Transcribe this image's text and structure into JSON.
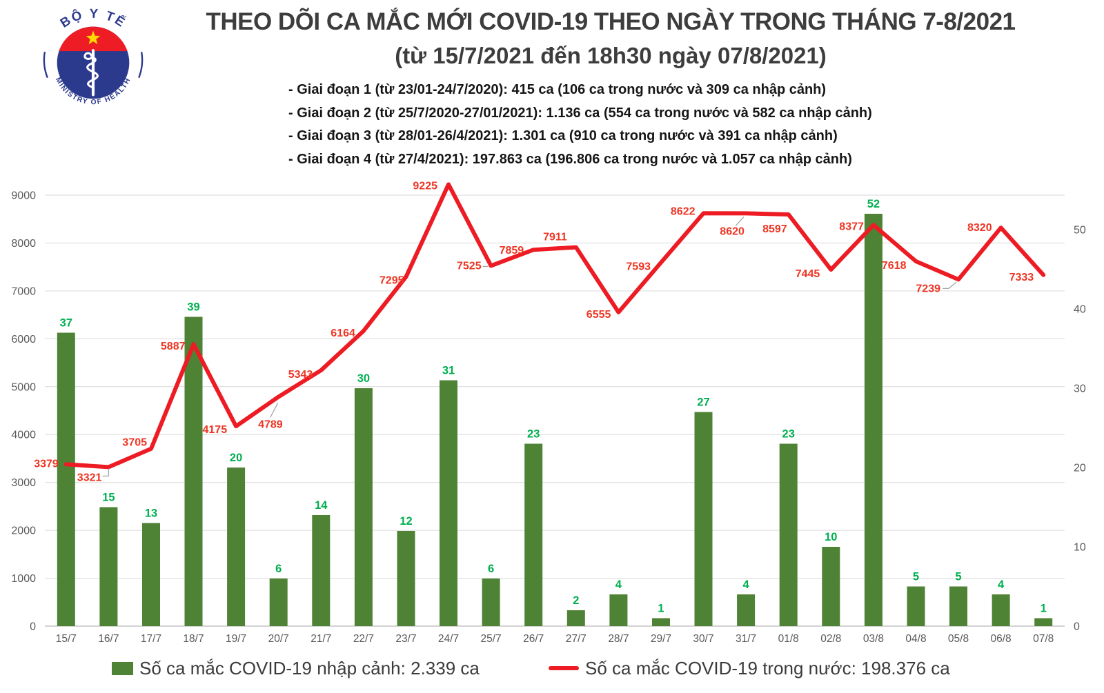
{
  "logo": {
    "top_text": "BỘ Y TẾ",
    "bottom_text": "MINISTRY OF HEALTH",
    "colors": {
      "blue": "#2c3a8e",
      "red": "#ee1c25",
      "star_yellow": "#ffd900"
    }
  },
  "header": {
    "title": "THEO DÕI CA MẮC MỚI COVID-19 THEO NGÀY TRONG THÁNG 7-8/2021",
    "subtitle": "(từ 15/7/2021 đến 18h30 ngày 07/8/2021)",
    "bullets": [
      "- Giai đoạn 1 (từ 23/01-24/7/2020): 415 ca (106 ca trong nước và 309 ca nhập cảnh)",
      "- Giai đoạn 2 (từ 25/7/2020-27/01/2021): 1.136 ca (554 ca trong nước và 582 ca nhập cảnh)",
      "- Giai đoạn 3 (từ 28/01-26/4/2021): 1.301 ca (910 ca trong nước và 391 ca nhập cảnh)",
      "- Giai đoạn 4 (từ 27/4/2021): 197.863 ca (196.806 ca trong nước và 1.057 ca nhập cảnh)"
    ]
  },
  "chart_data": {
    "type": "bar+line",
    "title": "THEO DÕI CA MẮC MỚI COVID-19 THEO NGÀY TRONG THÁNG 7-8/2021",
    "grid": true,
    "legend_position": "bottom",
    "categories": [
      "15/7",
      "16/7",
      "17/7",
      "18/7",
      "19/7",
      "20/7",
      "21/7",
      "22/7",
      "23/7",
      "24/7",
      "25/7",
      "26/7",
      "27/7",
      "28/7",
      "29/7",
      "30/7",
      "31/7",
      "01/8",
      "02/8",
      "03/8",
      "04/8",
      "05/8",
      "06/8",
      "07/8"
    ],
    "series": [
      {
        "name": "Số ca mắc COVID-19 nhập cảnh",
        "type": "bar",
        "axis": "right",
        "color": "#4e8234",
        "label_color": "#00af50",
        "values": [
          37,
          15,
          13,
          39,
          20,
          6,
          14,
          30,
          12,
          31,
          6,
          23,
          2,
          4,
          1,
          27,
          4,
          23,
          10,
          52,
          5,
          5,
          4,
          1
        ]
      },
      {
        "name": "Số ca mắc COVID-19 trong nước",
        "type": "line",
        "axis": "left",
        "color": "#ed1c24",
        "label_color": "#ee3524",
        "values": [
          3379,
          3321,
          3705,
          5887,
          4175,
          4789,
          5343,
          6164,
          7295,
          9225,
          7525,
          7859,
          7911,
          6555,
          7593,
          8622,
          8620,
          8597,
          7445,
          8377,
          7618,
          7239,
          8320,
          7333
        ]
      }
    ],
    "left_axis": {
      "min": 0,
      "max": 9000,
      "step": 1000,
      "ticks": [
        0,
        1000,
        2000,
        3000,
        4000,
        5000,
        6000,
        7000,
        8000,
        9000
      ]
    },
    "right_axis": {
      "min": 0,
      "ticks": [
        0,
        10,
        20,
        30,
        40,
        50
      ]
    },
    "colors": {
      "grid": "#d9d9d9",
      "axis_text": "#595959",
      "leader": "#a6a6a6"
    }
  },
  "legend": [
    {
      "label": "Số ca mắc COVID-19 nhập cảnh: 2.339 ca",
      "swatch": "bar",
      "color": "#4e8234"
    },
    {
      "label": "Số ca mắc COVID-19 trong nước: 198.376 ca",
      "swatch": "line",
      "color": "#ed1c24"
    }
  ]
}
